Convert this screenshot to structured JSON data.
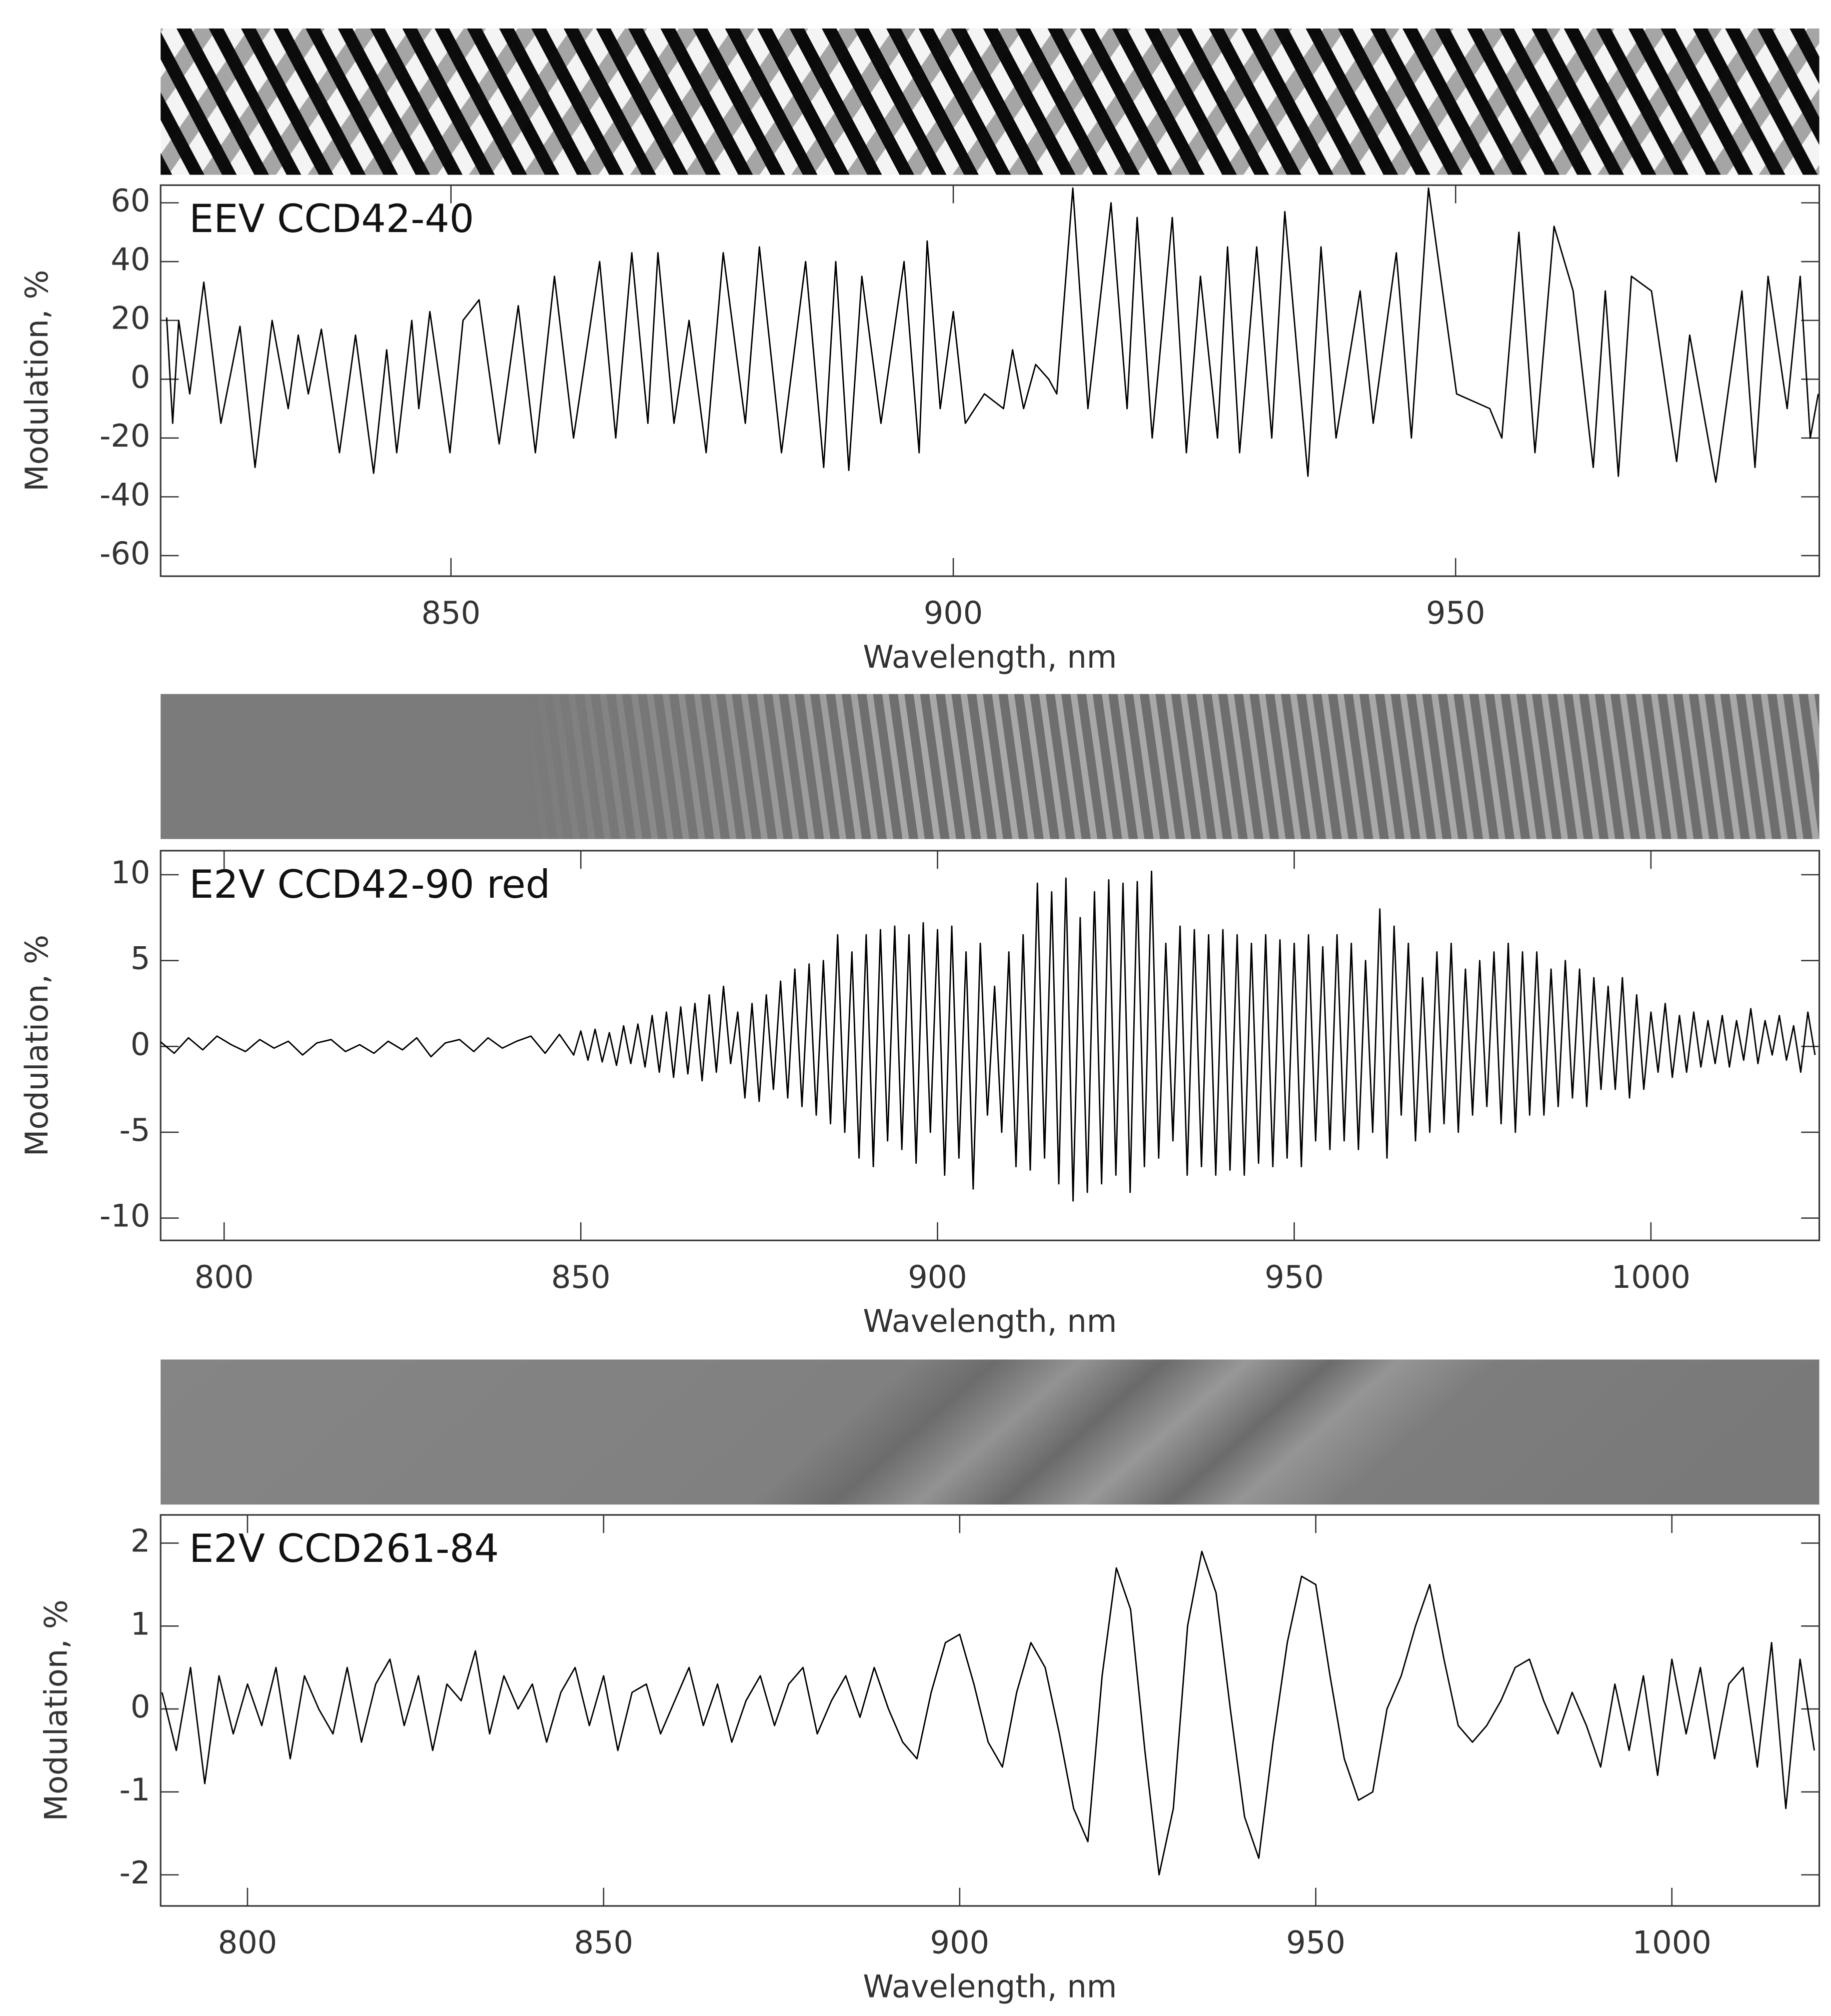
{
  "chart_data": [
    {
      "type": "line",
      "annotation": "EEV CCD42-40",
      "ylabel": "Modulation, %",
      "xlabel": "Wavelength, nm",
      "color": "#000000",
      "xlim": [
        821.1,
        986.2
      ],
      "ylim": [
        -67,
        66
      ],
      "xticks": [
        850,
        900,
        950
      ],
      "yticks": [
        -60,
        -40,
        -20,
        0,
        20,
        40,
        60
      ],
      "x": [
        821.7,
        822.3,
        822.9,
        824.0,
        825.4,
        827.1,
        829.0,
        830.5,
        832.2,
        833.8,
        834.8,
        835.8,
        837.1,
        838.9,
        840.5,
        842.3,
        843.6,
        844.6,
        846.1,
        846.8,
        847.9,
        849.9,
        851.2,
        852.8,
        854.8,
        856.7,
        858.4,
        860.3,
        862.2,
        864.8,
        866.4,
        868.0,
        869.6,
        870.6,
        872.2,
        873.7,
        875.4,
        877.1,
        879.3,
        880.7,
        882.9,
        885.3,
        887.1,
        888.3,
        889.6,
        890.9,
        892.8,
        895.1,
        896.6,
        897.4,
        898.7,
        900.0,
        901.2,
        903.1,
        905.0,
        905.9,
        907.0,
        908.2,
        909.5,
        910.3,
        911.9,
        913.4,
        915.7,
        917.3,
        918.3,
        919.8,
        921.8,
        923.2,
        924.6,
        926.3,
        927.3,
        928.5,
        930.2,
        931.7,
        933.0,
        935.3,
        936.6,
        938.1,
        940.5,
        941.8,
        944.1,
        945.6,
        947.3,
        950.1,
        953.4,
        954.6,
        956.3,
        957.9,
        959.8,
        961.7,
        963.7,
        964.9,
        966.2,
        967.5,
        969.5,
        972.0,
        973.3,
        975.9,
        978.5,
        979.8,
        981.1,
        983.0,
        984.3,
        985.3,
        986.1
      ],
      "values": [
        21,
        -15,
        20,
        -5,
        33,
        -15,
        18,
        -30,
        20,
        -10,
        15,
        -5,
        17,
        -25,
        15,
        -32,
        10,
        -25,
        20,
        -10,
        23,
        -25,
        20,
        27,
        -22,
        25,
        -25,
        35,
        -20,
        40,
        -20,
        43,
        -15,
        43,
        -15,
        20,
        -25,
        43,
        -15,
        45,
        -25,
        40,
        -30,
        40,
        -31,
        35,
        -15,
        40,
        -25,
        47,
        -10,
        23,
        -15,
        -5,
        -10,
        10,
        -10,
        5,
        0,
        -5,
        65,
        -10,
        60,
        -10,
        55,
        -20,
        55,
        -25,
        35,
        -20,
        45,
        -25,
        45,
        -20,
        57,
        -33,
        45,
        -20,
        30,
        -15,
        43,
        -20,
        65,
        -5,
        -10,
        -20,
        50,
        -25,
        52,
        30,
        -30,
        30,
        -33,
        35,
        30,
        -28,
        15,
        -35,
        30,
        -30,
        35,
        -10,
        35,
        -20,
        -5
      ]
    },
    {
      "type": "line",
      "annotation": "E2V CCD42-90 red",
      "ylabel": "Modulation, %",
      "xlabel": "Wavelength, nm",
      "color": "#000000",
      "xlim": [
        791.1,
        1023.6
      ],
      "ylim": [
        -11.3,
        11.4
      ],
      "xticks": [
        800,
        850,
        900,
        950,
        1000
      ],
      "yticks": [
        -10,
        -5,
        0,
        5,
        10
      ],
      "x": [
        791,
        793,
        795,
        797,
        799,
        801,
        803,
        805,
        807,
        809,
        811,
        813,
        815,
        817,
        819,
        821,
        823,
        825,
        827,
        829,
        831,
        833,
        835,
        837,
        839,
        841,
        843,
        845,
        847,
        849,
        850,
        851,
        852,
        853,
        854,
        855,
        856,
        857,
        858,
        859,
        860,
        861,
        862,
        863,
        864,
        865,
        866,
        867,
        868,
        869,
        870,
        871,
        872,
        873,
        874,
        875,
        876,
        877,
        878,
        879,
        880,
        881,
        882,
        883,
        884,
        885,
        886,
        887,
        888,
        889,
        890,
        891,
        892,
        893,
        894,
        895,
        896,
        897,
        898,
        899,
        900,
        901,
        902,
        903,
        904,
        905,
        906,
        907,
        908,
        909,
        910,
        911,
        912,
        913,
        914,
        915,
        916,
        917,
        918,
        919,
        920,
        921,
        922,
        923,
        924,
        925,
        926,
        927,
        928,
        929,
        930,
        931,
        932,
        933,
        934,
        935,
        936,
        937,
        938,
        939,
        940,
        941,
        942,
        943,
        944,
        945,
        946,
        947,
        948,
        949,
        950,
        951,
        952,
        953,
        954,
        955,
        956,
        957,
        958,
        959,
        960,
        961,
        962,
        963,
        964,
        965,
        966,
        967,
        968,
        969,
        970,
        971,
        972,
        973,
        974,
        975,
        976,
        977,
        978,
        979,
        980,
        981,
        982,
        983,
        984,
        985,
        986,
        987,
        988,
        989,
        990,
        991,
        992,
        993,
        994,
        995,
        996,
        997,
        998,
        999,
        1000,
        1001,
        1002,
        1003,
        1004,
        1005,
        1006,
        1007,
        1008,
        1009,
        1010,
        1011,
        1012,
        1013,
        1014,
        1015,
        1016,
        1017,
        1018,
        1019,
        1020,
        1021,
        1022,
        1023
      ],
      "values": [
        0.3,
        -0.4,
        0.5,
        -0.2,
        0.6,
        0.1,
        -0.3,
        0.4,
        -0.1,
        0.3,
        -0.5,
        0.2,
        0.4,
        -0.3,
        0.1,
        -0.4,
        0.3,
        -0.2,
        0.5,
        -0.6,
        0.2,
        0.4,
        -0.3,
        0.5,
        -0.1,
        0.3,
        0.6,
        -0.4,
        0.7,
        -0.5,
        0.9,
        -0.8,
        1.0,
        -0.9,
        0.8,
        -1.1,
        1.2,
        -1.0,
        1.3,
        -1.2,
        1.8,
        -1.5,
        2.0,
        -1.8,
        2.3,
        -1.6,
        2.5,
        -2.0,
        3.0,
        -1.5,
        3.5,
        -1.0,
        2.0,
        -3.0,
        2.5,
        -3.2,
        3.0,
        -2.5,
        3.8,
        -3.0,
        4.5,
        -3.5,
        4.8,
        -4.0,
        5.0,
        -4.5,
        6.5,
        -5.0,
        5.5,
        -6.5,
        6.5,
        -7.0,
        6.8,
        -5.5,
        7.0,
        -6.0,
        6.5,
        -6.8,
        7.2,
        -5.0,
        6.8,
        -7.5,
        7.0,
        -6.5,
        5.5,
        -8.3,
        6.0,
        -4.0,
        3.5,
        -5.0,
        5.5,
        -7.0,
        6.5,
        -7.2,
        9.5,
        -6.5,
        9.0,
        -8.0,
        9.8,
        -9.0,
        7.5,
        -8.5,
        9.0,
        -8.0,
        9.7,
        -7.5,
        9.5,
        -8.5,
        9.6,
        -7.0,
        10.2,
        -6.5,
        6.0,
        -5.5,
        7.0,
        -7.5,
        6.8,
        -7.0,
        6.5,
        -7.5,
        6.8,
        -7.2,
        6.5,
        -7.5,
        6.0,
        -6.8,
        6.5,
        -7.0,
        6.2,
        -6.5,
        6.0,
        -7.0,
        6.5,
        -5.5,
        5.8,
        -6.0,
        6.5,
        -5.5,
        6.0,
        -6.0,
        5.0,
        -5.0,
        8.0,
        -6.5,
        7.0,
        -4.0,
        6.0,
        -5.5,
        4.0,
        -5.0,
        5.5,
        -4.5,
        6.0,
        -5.0,
        4.5,
        -4.0,
        5.0,
        -3.5,
        5.5,
        -4.5,
        6.0,
        -5.0,
        5.5,
        -4.0,
        5.5,
        -4.0,
        4.5,
        -3.5,
        5.0,
        -3.0,
        4.5,
        -3.5,
        4.0,
        -2.5,
        3.5,
        -2.5,
        4.0,
        -3.0,
        3.0,
        -2.5,
        2.0,
        -1.5,
        2.5,
        -1.8,
        1.8,
        -1.5,
        2.0,
        -1.2,
        1.5,
        -1.0,
        1.8,
        -1.2,
        1.5,
        -0.8,
        2.2,
        -1.0,
        1.5,
        -0.5,
        1.8,
        -0.8,
        1.2,
        -1.5,
        2.0,
        -0.5
      ]
    },
    {
      "type": "line",
      "annotation": "E2V CCD261-84",
      "ylabel": "Modulation, %",
      "xlabel": "Wavelength, nm",
      "color": "#000000",
      "xlim": [
        787.8,
        1020.7
      ],
      "ylim": [
        -2.375,
        2.34
      ],
      "xticks": [
        800,
        850,
        900,
        950,
        1000
      ],
      "yticks": [
        -2,
        -1,
        0,
        1,
        2
      ],
      "x": [
        788,
        790,
        792,
        794,
        796,
        798,
        800,
        802,
        804,
        806,
        808,
        810,
        812,
        814,
        816,
        818,
        820,
        822,
        824,
        826,
        828,
        830,
        832,
        834,
        836,
        838,
        840,
        842,
        844,
        846,
        848,
        850,
        852,
        854,
        856,
        858,
        860,
        862,
        864,
        866,
        868,
        870,
        872,
        874,
        876,
        878,
        880,
        882,
        884,
        886,
        888,
        890,
        892,
        894,
        896,
        898,
        900,
        902,
        904,
        906,
        908,
        910,
        912,
        914,
        916,
        918,
        920,
        922,
        924,
        926,
        928,
        930,
        932,
        934,
        936,
        938,
        940,
        942,
        944,
        946,
        948,
        950,
        952,
        954,
        956,
        958,
        960,
        962,
        964,
        966,
        968,
        970,
        972,
        974,
        976,
        978,
        980,
        982,
        984,
        986,
        988,
        990,
        992,
        994,
        996,
        998,
        1000,
        1002,
        1004,
        1006,
        1008,
        1010,
        1012,
        1014,
        1016,
        1018,
        1020
      ],
      "values": [
        0.2,
        -0.5,
        0.5,
        -0.9,
        0.4,
        -0.3,
        0.3,
        -0.2,
        0.5,
        -0.6,
        0.4,
        0.0,
        -0.3,
        0.5,
        -0.4,
        0.3,
        0.6,
        -0.2,
        0.4,
        -0.5,
        0.3,
        0.1,
        0.7,
        -0.3,
        0.4,
        0.0,
        0.3,
        -0.4,
        0.2,
        0.5,
        -0.2,
        0.4,
        -0.5,
        0.2,
        0.3,
        -0.3,
        0.1,
        0.5,
        -0.2,
        0.3,
        -0.4,
        0.1,
        0.4,
        -0.2,
        0.3,
        0.5,
        -0.3,
        0.1,
        0.4,
        -0.1,
        0.5,
        0.0,
        -0.4,
        -0.6,
        0.2,
        0.8,
        0.9,
        0.3,
        -0.4,
        -0.7,
        0.2,
        0.8,
        0.5,
        -0.3,
        -1.2,
        -1.6,
        0.4,
        1.7,
        1.2,
        -0.5,
        -2.0,
        -1.2,
        1.0,
        1.9,
        1.4,
        0.0,
        -1.3,
        -1.8,
        -0.4,
        0.8,
        1.6,
        1.5,
        0.4,
        -0.6,
        -1.1,
        -1.0,
        0.0,
        0.4,
        1.0,
        1.5,
        0.6,
        -0.2,
        -0.4,
        -0.2,
        0.1,
        0.5,
        0.6,
        0.1,
        -0.3,
        0.2,
        -0.2,
        -0.7,
        0.3,
        -0.5,
        0.4,
        -0.8,
        0.6,
        -0.3,
        0.5,
        -0.6,
        0.3,
        0.5,
        -0.7,
        0.8,
        -1.2,
        0.6,
        -0.5
      ]
    }
  ]
}
